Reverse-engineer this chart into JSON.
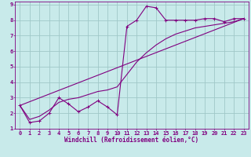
{
  "title": "",
  "xlabel": "Windchill (Refroidissement éolien,°C)",
  "ylabel": "",
  "bg_color": "#c8eaea",
  "grid_color": "#a0c8c8",
  "line_color": "#800080",
  "xlim": [
    -0.5,
    23.5
  ],
  "ylim": [
    1,
    9.2
  ],
  "xticks": [
    0,
    1,
    2,
    3,
    4,
    5,
    6,
    7,
    8,
    9,
    10,
    11,
    12,
    13,
    14,
    15,
    16,
    17,
    18,
    19,
    20,
    21,
    22,
    23
  ],
  "yticks": [
    1,
    2,
    3,
    4,
    5,
    6,
    7,
    8,
    9
  ],
  "line1_x": [
    0,
    1,
    2,
    3,
    4,
    5,
    6,
    7,
    8,
    9,
    10,
    11,
    12,
    13,
    14,
    15,
    16,
    17,
    18,
    19,
    20,
    21,
    22,
    23
  ],
  "line1_y": [
    2.5,
    1.4,
    1.5,
    2.0,
    3.0,
    2.6,
    2.1,
    2.4,
    2.8,
    2.4,
    1.9,
    7.6,
    8.0,
    8.9,
    8.8,
    8.0,
    8.0,
    8.0,
    8.0,
    8.1,
    8.1,
    7.9,
    8.1,
    8.1
  ],
  "line2_x": [
    0,
    23
  ],
  "line2_y": [
    2.5,
    8.1
  ],
  "line3_x": [
    0,
    1,
    2,
    3,
    4,
    5,
    6,
    7,
    8,
    9,
    10,
    11,
    12,
    13,
    14,
    15,
    16,
    17,
    18,
    19,
    20,
    21,
    22,
    23
  ],
  "line3_y": [
    2.5,
    1.6,
    1.8,
    2.2,
    2.7,
    2.9,
    3.0,
    3.2,
    3.4,
    3.5,
    3.7,
    4.5,
    5.3,
    5.9,
    6.4,
    6.8,
    7.1,
    7.3,
    7.5,
    7.6,
    7.7,
    7.8,
    7.9,
    8.1
  ],
  "tick_fontsize": 5.0,
  "label_fontsize": 5.5
}
